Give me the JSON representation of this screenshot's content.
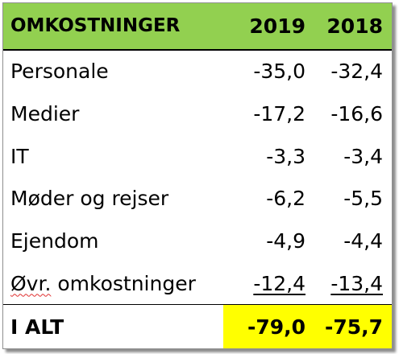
{
  "table": {
    "header": {
      "label": "OMKOSTNINGER",
      "col_a": "2019",
      "col_b": "2018"
    },
    "rows": [
      {
        "label": "Personale",
        "col_a": "-35,0",
        "col_b": "-32,4"
      },
      {
        "label": "Medier",
        "col_a": "-17,2",
        "col_b": "-16,6"
      },
      {
        "label": "IT",
        "col_a": "-3,3",
        "col_b": "-3,4"
      },
      {
        "label": "Møder og rejser",
        "col_a": "-6,2",
        "col_b": "-5,5"
      },
      {
        "label": "Ejendom",
        "col_a": "-4,9",
        "col_b": "-4,4"
      },
      {
        "label_prefix": "Øvr.",
        "label_rest": " omkostninger",
        "col_a": "-12,4",
        "col_b": "-13,4"
      }
    ],
    "total": {
      "label": "I ALT",
      "col_a": "-79,0",
      "col_b": "-75,7"
    }
  },
  "colors": {
    "header_bg": "#92d050",
    "total_highlight": "#ffff00",
    "border": "#000000"
  }
}
